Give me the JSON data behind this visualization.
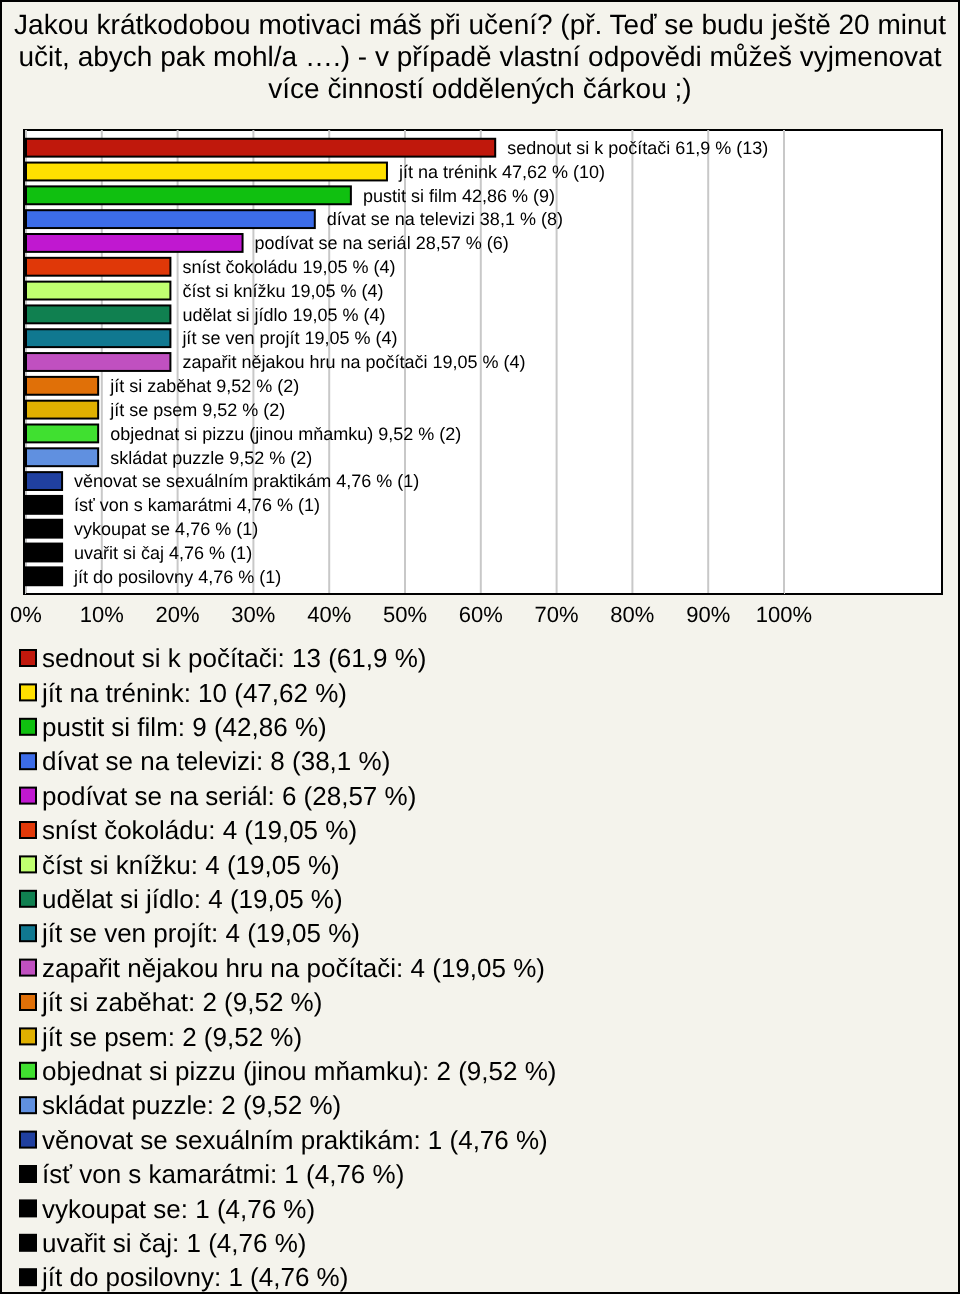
{
  "chart_data": {
    "type": "bar",
    "orientation": "horizontal",
    "title": "Jakou krátkodobou motivaci máš při učení? (př. Teď se budu ještě 20 minut učit, abych pak mohl/a ….) - v případě vlastní odpovědi můžeš vyjmenovat více činností oddělených čárkou ;)",
    "categories": [
      null,
      null,
      null,
      null,
      null,
      null,
      null,
      null,
      null,
      null,
      null,
      null,
      null,
      null,
      null,
      null,
      null,
      null,
      null
    ],
    "values": [
      61.9,
      47.62,
      42.86,
      38.1,
      28.57,
      19.05,
      19.05,
      19.05,
      19.05,
      19.05,
      9.52,
      9.52,
      9.52,
      9.52,
      4.76,
      4.76,
      4.76,
      4.76,
      4.76
    ],
    "colors": [
      "#c0180c",
      "#ffe000",
      "#10c010",
      "#3c6ce8",
      "#c018d0",
      "#e03808",
      "#c0ff70",
      "#108050",
      "#107890",
      "#c050c0",
      "#e07008",
      "#e0b000",
      "#40e030",
      "#6090e0",
      "#2040a0",
      "#000000",
      "#000000",
      "#000000",
      "#000000"
    ],
    "value_labels": [
      "sednout si k počítači 61,9 % (13)",
      "jít na trénink 47,62 % (10)",
      "pustit si film 42,86 % (9)",
      "dívat se na televizi 38,1 % (8)",
      "podívat se na seriál 28,57 % (6)",
      "sníst čokoládu 19,05 % (4)",
      "číst si knížku 19,05 % (4)",
      "udělat si jídlo 19,05 % (4)",
      "jít se ven projít 19,05 % (4)",
      "zapařit nějakou hru na počítači 19,05 % (4)",
      "jít si zaběhat 9,52 % (2)",
      "jít se psem 9,52 % (2)",
      "objednat si pizzu (jinou mňamku) 9,52 % (2)",
      "skládat puzzle 9,52 % (2)",
      "věnovat se sexuálním praktikám 4,76 % (1)",
      "ísť von s kamarátmi 4,76 % (1)",
      "vykoupat se 4,76 % (1)",
      "uvařit si čaj 4,76 % (1)",
      "jít do posilovny 4,76 % (1)"
    ],
    "annotations": [
      "sednout si k počítači: 13 (61,9 %)",
      "jít na trénink: 10 (47,62 %)",
      "pustit si film: 9 (42,86 %)",
      "dívat se na televizi: 8 (38,1 %)",
      "podívat se na seriál: 6 (28,57 %)",
      "sníst čokoládu: 4 (19,05 %)",
      "číst si knížku: 4 (19,05 %)",
      "udělat si jídlo: 4 (19,05 %)",
      "jít se ven projít: 4 (19,05 %)",
      "zapařit nějakou hru na počítači: 4 (19,05 %)",
      "jít si zaběhat: 2 (9,52 %)",
      "jít se psem: 2 (9,52 %)",
      "objednat si pizzu (jinou mňamku): 2 (9,52 %)",
      "skládat puzzle: 2 (9,52 %)",
      "věnovat se sexuálním praktikám: 1 (4,76 %)",
      "ísť von s kamarátmi: 1 (4,76 %)",
      "vykoupat se: 1 (4,76 %)",
      "uvařit si čaj: 1 (4,76 %)",
      "jít do posilovny: 1 (4,76 %)"
    ],
    "xlim": [
      0,
      100
    ],
    "xticks": [
      {
        "value": 0,
        "label": "0%"
      },
      {
        "value": 10,
        "label": "10%"
      },
      {
        "value": 20,
        "label": "20%"
      },
      {
        "value": 30,
        "label": "30%"
      },
      {
        "value": 40,
        "label": "40%"
      },
      {
        "value": 50,
        "label": "50%"
      },
      {
        "value": 60,
        "label": "60%"
      },
      {
        "value": 70,
        "label": "70%"
      },
      {
        "value": 80,
        "label": "80%"
      },
      {
        "value": 90,
        "label": "90%"
      },
      {
        "value": 100,
        "label": "100%"
      }
    ],
    "grid": "x"
  }
}
